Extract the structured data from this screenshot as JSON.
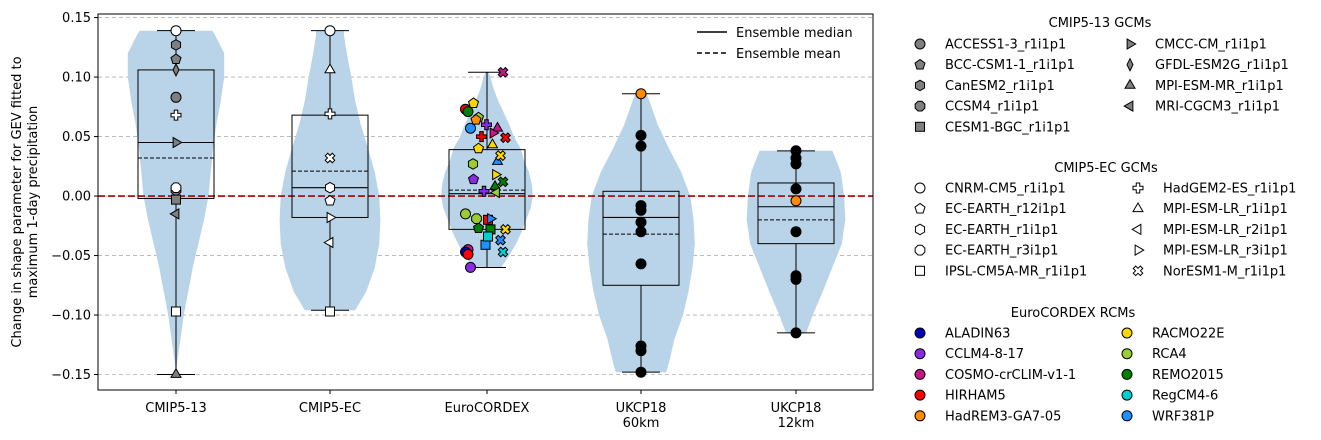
{
  "chart_data": {
    "type": "violin",
    "ylabel_lines": [
      "Change in shape parameter for GEV fitted to",
      "maximum 1-day precipitation"
    ],
    "ylim": [
      -0.163,
      0.153
    ],
    "yticks": [
      0.15,
      0.1,
      0.05,
      0.0,
      -0.05,
      -0.1,
      -0.15
    ],
    "ytick_labels": [
      "0.15",
      "0.10",
      "0.05",
      "0.00",
      "−0.05",
      "−0.10",
      "−0.15"
    ],
    "grid": "horizontal dashed",
    "zero_line_color": "#a50000",
    "violin_color": "#b9d4e8",
    "legend_lines": {
      "median": "Ensemble median",
      "mean": "Ensemble mean"
    },
    "groups": [
      {
        "label": [
          "CMIP5-13"
        ],
        "min": -0.15,
        "q1": -0.002,
        "median": 0.045,
        "mean": 0.032,
        "q3": 0.106,
        "max": 0.139,
        "violin": [
          [
            -0.15,
            0.001
          ],
          [
            -0.14,
            0.02
          ],
          [
            -0.12,
            0.08
          ],
          [
            -0.1,
            0.14
          ],
          [
            -0.08,
            0.22
          ],
          [
            -0.06,
            0.3
          ],
          [
            -0.04,
            0.4
          ],
          [
            -0.02,
            0.5
          ],
          [
            0.0,
            0.58
          ],
          [
            0.02,
            0.62
          ],
          [
            0.04,
            0.66
          ],
          [
            0.06,
            0.72
          ],
          [
            0.08,
            0.8
          ],
          [
            0.1,
            0.86
          ],
          [
            0.12,
            0.86
          ],
          [
            0.135,
            0.7
          ],
          [
            0.139,
            0.65
          ]
        ]
      },
      {
        "label": [
          "CMIP5-EC"
        ],
        "min": -0.096,
        "q1": -0.018,
        "median": 0.007,
        "mean": 0.021,
        "q3": 0.068,
        "max": 0.139,
        "violin": [
          [
            -0.096,
            0.45
          ],
          [
            -0.08,
            0.65
          ],
          [
            -0.06,
            0.8
          ],
          [
            -0.04,
            0.88
          ],
          [
            -0.02,
            0.9
          ],
          [
            0.0,
            0.88
          ],
          [
            0.02,
            0.8
          ],
          [
            0.04,
            0.68
          ],
          [
            0.06,
            0.55
          ],
          [
            0.08,
            0.45
          ],
          [
            0.1,
            0.38
          ],
          [
            0.12,
            0.3
          ],
          [
            0.135,
            0.25
          ],
          [
            0.139,
            0.25
          ]
        ]
      },
      {
        "label": [
          "EuroCORDEX"
        ],
        "min": -0.06,
        "q1": -0.028,
        "median": 0.002,
        "mean": 0.005,
        "q3": 0.039,
        "max": 0.104,
        "violin": [
          [
            -0.06,
            0.25
          ],
          [
            -0.05,
            0.4
          ],
          [
            -0.04,
            0.52
          ],
          [
            -0.03,
            0.62
          ],
          [
            -0.02,
            0.7
          ],
          [
            -0.01,
            0.78
          ],
          [
            0.0,
            0.82
          ],
          [
            0.01,
            0.8
          ],
          [
            0.02,
            0.75
          ],
          [
            0.03,
            0.66
          ],
          [
            0.04,
            0.6
          ],
          [
            0.05,
            0.48
          ],
          [
            0.06,
            0.4
          ],
          [
            0.07,
            0.3
          ],
          [
            0.08,
            0.2
          ],
          [
            0.09,
            0.12
          ],
          [
            0.1,
            0.06
          ],
          [
            0.104,
            0.03
          ]
        ]
      },
      {
        "label": [
          "UKCP18",
          "60km"
        ],
        "min": -0.148,
        "q1": -0.075,
        "median": -0.018,
        "mean": -0.032,
        "q3": 0.004,
        "max": 0.086,
        "violin": [
          [
            -0.148,
            0.45
          ],
          [
            -0.14,
            0.5
          ],
          [
            -0.12,
            0.6
          ],
          [
            -0.1,
            0.75
          ],
          [
            -0.08,
            0.85
          ],
          [
            -0.06,
            0.92
          ],
          [
            -0.04,
            0.96
          ],
          [
            -0.02,
            0.94
          ],
          [
            0.0,
            0.88
          ],
          [
            0.02,
            0.72
          ],
          [
            0.04,
            0.5
          ],
          [
            0.06,
            0.3
          ],
          [
            0.08,
            0.15
          ],
          [
            0.086,
            0.1
          ]
        ]
      },
      {
        "label": [
          "UKCP18",
          "12km"
        ],
        "min": -0.115,
        "q1": -0.04,
        "median": -0.009,
        "mean": -0.02,
        "q3": 0.011,
        "max": 0.038,
        "violin": [
          [
            -0.115,
            0.18
          ],
          [
            -0.1,
            0.3
          ],
          [
            -0.08,
            0.48
          ],
          [
            -0.06,
            0.65
          ],
          [
            -0.04,
            0.82
          ],
          [
            -0.02,
            0.88
          ],
          [
            0.0,
            0.86
          ],
          [
            0.02,
            0.8
          ],
          [
            0.03,
            0.72
          ],
          [
            0.038,
            0.65
          ]
        ]
      }
    ],
    "points": {
      "cmip5_13": [
        {
          "model": "ACCESS1-3_r1i1p1",
          "v": 0.083
        },
        {
          "model": "BCC-CSM1-1_r1i1p1",
          "v": 0.115
        },
        {
          "model": "CanESM2_r1i1p1",
          "v": 0.127
        },
        {
          "model": "CCSM4_r1i1p1",
          "v": 0.005
        },
        {
          "model": "CESM1-BGC_r1i1p1",
          "v": -0.003
        },
        {
          "model": "CMCC-CM_r1i1p1",
          "v": 0.045
        },
        {
          "model": "GFDL-ESM2G_r1i1p1",
          "v": 0.106
        },
        {
          "model": "MPI-ESM-MR_r1i1p1",
          "v": -0.15
        },
        {
          "model": "MRI-CGCM3_r1i1p1",
          "v": -0.015
        },
        {
          "model": "CNRM-CM5_r1i1p1",
          "v": 0.139
        },
        {
          "model": "HadGEM2-ES_r1i1p1",
          "v": 0.068
        },
        {
          "model": "EC-EARTH_r3i1p1",
          "v": 0.007
        },
        {
          "model": "IPSL-CM5A-MR_r1i1p1",
          "v": -0.097
        }
      ],
      "cmip5_ec": [
        {
          "model": "CNRM-CM5_r1i1p1",
          "v": 0.139
        },
        {
          "model": "EC-EARTH_r12i1p1",
          "v": -0.004
        },
        {
          "model": "EC-EARTH_r1i1p1",
          "v": 0.007
        },
        {
          "model": "HadGEM2-ES_r1i1p1",
          "v": 0.069
        },
        {
          "model": "IPSL-CM5A-MR_r1i1p1",
          "v": -0.097
        },
        {
          "model": "MPI-ESM-LR_r1i1p1",
          "v": 0.106
        },
        {
          "model": "MPI-ESM-LR_r2i1p1",
          "v": -0.039
        },
        {
          "model": "MPI-ESM-LR_r3i1p1",
          "v": -0.018
        },
        {
          "model": "NorESM1-M_r1i1p1",
          "v": 0.032
        }
      ],
      "eurocordex": [
        {
          "rcm": "HIRHAM5",
          "gcm": "CNRM-CM5_r1i1p1",
          "v": 0.073
        },
        {
          "rcm": "REMO2015",
          "gcm": "CNRM-CM5_r1i1p1",
          "v": 0.071
        },
        {
          "rcm": "WRF381P",
          "gcm": "CNRM-CM5_r1i1p1",
          "v": 0.057
        },
        {
          "rcm": "RCA4",
          "gcm": "CNRM-CM5_r1i1p1",
          "v": -0.015
        },
        {
          "rcm": "COSMO-crCLIM-v1-1",
          "gcm": "CNRM-CM5_r1i1p1",
          "v": -0.045
        },
        {
          "rcm": "CCLM4-8-17",
          "gcm": "CNRM-CM5_r1i1p1",
          "v": -0.06
        },
        {
          "rcm": "ALADIN63",
          "gcm": "CNRM-CM5_r1i1p1",
          "v": -0.047
        },
        {
          "rcm": "HIRHAM5",
          "gcm": "CNRM-CM5_r1i1p1",
          "v": -0.049
        },
        {
          "rcm": "RCA4",
          "gcm": "EC-EARTH_r12i1p1",
          "v": 0.066
        },
        {
          "rcm": "RACMO22E",
          "gcm": "EC-EARTH_r12i1p1",
          "v": 0.078
        },
        {
          "rcm": "HadREM3-GA7-05",
          "gcm": "EC-EARTH_r12i1p1",
          "v": 0.064
        },
        {
          "rcm": "RACMO22E",
          "gcm": "EC-EARTH_r12i1p1",
          "v": 0.04
        },
        {
          "rcm": "CCLM4-8-17",
          "gcm": "EC-EARTH_r12i1p1",
          "v": 0.014
        },
        {
          "rcm": "RCA4",
          "gcm": "EC-EARTH_r1i1p1",
          "v": 0.027
        },
        {
          "rcm": "REMO2015",
          "gcm": "EC-EARTH_r12i1p1",
          "v": -0.027
        },
        {
          "rcm": "RCA4",
          "gcm": "EC-EARTH_r3i1p1",
          "v": -0.019
        },
        {
          "rcm": "HIRHAM5",
          "gcm": "IPSL-CM5A-MR_r1i1p1",
          "v": -0.02
        },
        {
          "rcm": "REMO2015",
          "gcm": "IPSL-CM5A-MR_r1i1p1",
          "v": -0.028
        },
        {
          "rcm": "WRF381P",
          "gcm": "IPSL-CM5A-MR_r1i1p1",
          "v": -0.041
        },
        {
          "rcm": "RegCM4-6",
          "gcm": "IPSL-CM5A-MR_r1i1p1",
          "v": -0.034
        },
        {
          "rcm": "CCLM4-8-17",
          "gcm": "HadGEM2-ES_r1i1p1",
          "v": 0.06
        },
        {
          "rcm": "HIRHAM5",
          "gcm": "HadGEM2-ES_r1i1p1",
          "v": 0.05
        },
        {
          "rcm": "CCLM4-8-17",
          "gcm": "HadGEM2-ES_r1i1p1",
          "v": 0.004
        },
        {
          "rcm": "COSMO-crCLIM-v1-1",
          "gcm": "MPI-ESM-LR_r1i1p1",
          "v": 0.057
        },
        {
          "rcm": "RACMO22E",
          "gcm": "MPI-ESM-LR_r1i1p1",
          "v": 0.043
        },
        {
          "rcm": "REMO2015",
          "gcm": "MPI-ESM-LR_r1i1p1",
          "v": 0.008
        },
        {
          "rcm": "WRF381P",
          "gcm": "MPI-ESM-LR_r1i1p1",
          "v": 0.029
        },
        {
          "rcm": "RCA4",
          "gcm": "MPI-ESM-LR_r2i1p1",
          "v": 0.003
        },
        {
          "rcm": "COSMO-crCLIM-v1-1",
          "gcm": "MPI-ESM-LR_r3i1p1",
          "v": 0.053
        },
        {
          "rcm": "RACMO22E",
          "gcm": "MPI-ESM-LR_r3i1p1",
          "v": 0.018
        },
        {
          "rcm": "WRF381P",
          "gcm": "MPI-ESM-LR_r3i1p1",
          "v": -0.019
        },
        {
          "rcm": "COSMO-crCLIM-v1-1",
          "gcm": "NorESM1-M_r1i1p1",
          "v": 0.104
        },
        {
          "rcm": "HIRHAM5",
          "gcm": "NorESM1-M_r1i1p1",
          "v": 0.049
        },
        {
          "rcm": "RACMO22E",
          "gcm": "NorESM1-M_r1i1p1",
          "v": 0.034
        },
        {
          "rcm": "REMO2015",
          "gcm": "NorESM1-M_r1i1p1",
          "v": 0.012
        },
        {
          "rcm": "RACMO22E",
          "gcm": "NorESM1-M_r1i1p1",
          "v": -0.028
        },
        {
          "rcm": "WRF381P",
          "gcm": "NorESM1-M_r1i1p1",
          "v": -0.037
        },
        {
          "rcm": "RegCM4-6",
          "gcm": "NorESM1-M_r1i1p1",
          "v": -0.047
        }
      ],
      "ukcp18_60km": [
        0.051,
        0.042,
        -0.008,
        -0.012,
        -0.022,
        -0.03,
        -0.057,
        -0.126,
        -0.13,
        -0.148
      ],
      "ukcp18_60km_highlight": 0.086,
      "ukcp18_12km": [
        0.038,
        0.032,
        0.027,
        0.006,
        -0.03,
        -0.067,
        -0.07,
        -0.115
      ],
      "ukcp18_12km_highlight": -0.004
    }
  },
  "legend": {
    "cmip5_13": {
      "title": "CMIP5-13 GCMs",
      "items": [
        {
          "label": "ACCESS1-3_r1i1p1",
          "marker": "circle"
        },
        {
          "label": "BCC-CSM1-1_r1i1p1",
          "marker": "pentagon"
        },
        {
          "label": "CanESM2_r1i1p1",
          "marker": "hexagon"
        },
        {
          "label": "CCSM4_r1i1p1",
          "marker": "octagon"
        },
        {
          "label": "CESM1-BGC_r1i1p1",
          "marker": "square"
        },
        {
          "label": "CMCC-CM_r1i1p1",
          "marker": "tri-right"
        },
        {
          "label": "GFDL-ESM2G_r1i1p1",
          "marker": "thin-diamond"
        },
        {
          "label": "MPI-ESM-MR_r1i1p1",
          "marker": "tri-up"
        },
        {
          "label": "MRI-CGCM3_r1i1p1",
          "marker": "tri-left"
        }
      ]
    },
    "cmip5_ec": {
      "title": "CMIP5-EC GCMs",
      "items": [
        {
          "label": "CNRM-CM5_r1i1p1",
          "marker": "circle"
        },
        {
          "label": "EC-EARTH_r12i1p1",
          "marker": "pentagon"
        },
        {
          "label": "EC-EARTH_r1i1p1",
          "marker": "hexagon"
        },
        {
          "label": "EC-EARTH_r3i1p1",
          "marker": "octagon"
        },
        {
          "label": "IPSL-CM5A-MR_r1i1p1",
          "marker": "square"
        },
        {
          "label": "HadGEM2-ES_r1i1p1",
          "marker": "plus"
        },
        {
          "label": "MPI-ESM-LR_r1i1p1",
          "marker": "tri-up"
        },
        {
          "label": "MPI-ESM-LR_r2i1p1",
          "marker": "tri-left"
        },
        {
          "label": "MPI-ESM-LR_r3i1p1",
          "marker": "tri-right"
        },
        {
          "label": "NorESM1-M_r1i1p1",
          "marker": "x"
        }
      ]
    },
    "rcms": {
      "title": "EuroCORDEX RCMs",
      "items": [
        {
          "label": "ALADIN63",
          "color": "#0000b4"
        },
        {
          "label": "CCLM4-8-17",
          "color": "#8a2be2"
        },
        {
          "label": "COSMO-crCLIM-v1-1",
          "color": "#c71585"
        },
        {
          "label": "HIRHAM5",
          "color": "#ff0000"
        },
        {
          "label": "HadREM3-GA7-05",
          "color": "#ff8c00"
        },
        {
          "label": "RACMO22E",
          "color": "#ffd700"
        },
        {
          "label": "RCA4",
          "color": "#9acd32"
        },
        {
          "label": "REMO2015",
          "color": "#008000"
        },
        {
          "label": "RegCM4-6",
          "color": "#00ced1"
        },
        {
          "label": "WRF381P",
          "color": "#1e90ff"
        }
      ]
    }
  },
  "colors": {
    "cmip5_13_fill": "#7f7f7f",
    "cmip5_ec_fill": "#ffffff",
    "ukcp_point": "#000000",
    "ukcp_highlight": "#ff8c00"
  }
}
